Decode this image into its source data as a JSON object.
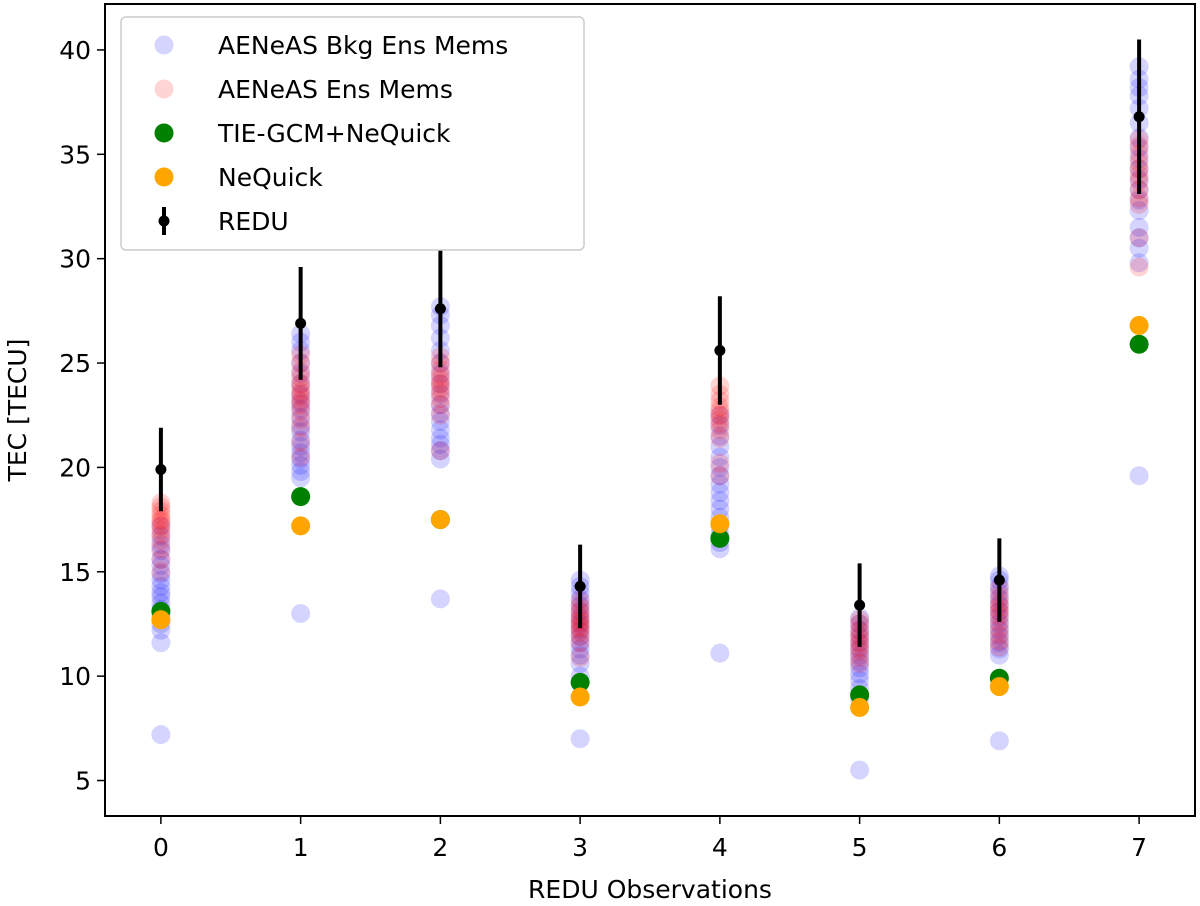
{
  "chart_data": {
    "type": "scatter",
    "title": "",
    "xlabel": "REDU Observations",
    "ylabel": "TEC [TECU]",
    "xlim": [
      -0.4,
      7.4
    ],
    "ylim": [
      3.3,
      42.2
    ],
    "xticks": [
      0,
      1,
      2,
      3,
      4,
      5,
      6,
      7
    ],
    "yticks": [
      5,
      10,
      15,
      20,
      25,
      30,
      35,
      40
    ],
    "legend_position": "top-left",
    "legend": [
      {
        "key": "bkg",
        "label": "AENeAS Bkg Ens Mems",
        "color": "#0000ff",
        "alpha": 0.17,
        "marker": "circle"
      },
      {
        "key": "ens",
        "label": "AENeAS Ens Mems",
        "color": "#ff0000",
        "alpha": 0.17,
        "marker": "circle"
      },
      {
        "key": "tie",
        "label": "TIE-GCM+NeQuick",
        "color": "#008000",
        "alpha": 1,
        "marker": "circle"
      },
      {
        "key": "neq",
        "label": "NeQuick",
        "color": "#ffa500",
        "alpha": 1,
        "marker": "circle"
      },
      {
        "key": "redu",
        "label": "REDU",
        "color": "#000000",
        "alpha": 1,
        "marker": "errorbar"
      }
    ],
    "series": [
      {
        "name": "AENeAS Bkg Ens Mems",
        "points": [
          [
            0,
            7.2
          ],
          [
            0,
            11.6
          ],
          [
            0,
            12.2
          ],
          [
            0,
            12.5
          ],
          [
            0,
            12.9
          ],
          [
            0,
            13.2
          ],
          [
            0,
            13.5
          ],
          [
            0,
            13.8
          ],
          [
            0,
            14.0
          ],
          [
            0,
            14.3
          ],
          [
            0,
            14.6
          ],
          [
            0,
            14.9
          ],
          [
            0,
            15.3
          ],
          [
            0,
            15.6
          ],
          [
            0,
            16.0
          ],
          [
            0,
            16.3
          ],
          [
            0,
            16.7
          ],
          [
            0,
            17.2
          ],
          [
            1,
            13.0
          ],
          [
            1,
            19.5
          ],
          [
            1,
            19.8
          ],
          [
            1,
            20.1
          ],
          [
            1,
            20.4
          ],
          [
            1,
            20.7
          ],
          [
            1,
            21.0
          ],
          [
            1,
            21.3
          ],
          [
            1,
            21.7
          ],
          [
            1,
            22.0
          ],
          [
            1,
            22.4
          ],
          [
            1,
            22.8
          ],
          [
            1,
            23.1
          ],
          [
            1,
            23.5
          ],
          [
            1,
            24.0
          ],
          [
            1,
            24.5
          ],
          [
            1,
            25.0
          ],
          [
            1,
            25.6
          ],
          [
            1,
            26.0
          ],
          [
            1,
            26.4
          ],
          [
            2,
            13.7
          ],
          [
            2,
            20.4
          ],
          [
            2,
            20.8
          ],
          [
            2,
            21.1
          ],
          [
            2,
            21.4
          ],
          [
            2,
            21.8
          ],
          [
            2,
            22.2
          ],
          [
            2,
            22.6
          ],
          [
            2,
            23.0
          ],
          [
            2,
            23.5
          ],
          [
            2,
            24.0
          ],
          [
            2,
            24.5
          ],
          [
            2,
            25.0
          ],
          [
            2,
            25.6
          ],
          [
            2,
            26.2
          ],
          [
            2,
            26.8
          ],
          [
            2,
            27.3
          ],
          [
            2,
            27.7
          ],
          [
            3,
            7.0
          ],
          [
            3,
            10.0
          ],
          [
            3,
            10.6
          ],
          [
            3,
            11.0
          ],
          [
            3,
            11.3
          ],
          [
            3,
            11.6
          ],
          [
            3,
            11.9
          ],
          [
            3,
            12.2
          ],
          [
            3,
            12.5
          ],
          [
            3,
            12.8
          ],
          [
            3,
            13.1
          ],
          [
            3,
            13.4
          ],
          [
            3,
            13.7
          ],
          [
            3,
            14.0
          ],
          [
            3,
            14.3
          ],
          [
            3,
            14.6
          ],
          [
            4,
            11.1
          ],
          [
            4,
            16.1
          ],
          [
            4,
            16.4
          ],
          [
            4,
            16.8
          ],
          [
            4,
            17.2
          ],
          [
            4,
            17.6
          ],
          [
            4,
            18.0
          ],
          [
            4,
            18.4
          ],
          [
            4,
            18.8
          ],
          [
            4,
            19.2
          ],
          [
            4,
            19.6
          ],
          [
            4,
            20.0
          ],
          [
            4,
            20.5
          ],
          [
            4,
            21.0
          ],
          [
            4,
            21.5
          ],
          [
            4,
            22.0
          ],
          [
            4,
            22.5
          ],
          [
            5,
            5.5
          ],
          [
            5,
            8.9
          ],
          [
            5,
            9.4
          ],
          [
            5,
            9.8
          ],
          [
            5,
            10.1
          ],
          [
            5,
            10.4
          ],
          [
            5,
            10.7
          ],
          [
            5,
            11.0
          ],
          [
            5,
            11.3
          ],
          [
            5,
            11.6
          ],
          [
            5,
            11.9
          ],
          [
            5,
            12.2
          ],
          [
            5,
            12.5
          ],
          [
            5,
            12.8
          ],
          [
            6,
            6.9
          ],
          [
            6,
            11.0
          ],
          [
            6,
            11.3
          ],
          [
            6,
            11.6
          ],
          [
            6,
            11.9
          ],
          [
            6,
            12.2
          ],
          [
            6,
            12.5
          ],
          [
            6,
            12.8
          ],
          [
            6,
            13.1
          ],
          [
            6,
            13.4
          ],
          [
            6,
            13.7
          ],
          [
            6,
            14.0
          ],
          [
            6,
            14.3
          ],
          [
            6,
            14.6
          ],
          [
            6,
            14.8
          ],
          [
            7,
            19.6
          ],
          [
            7,
            29.8
          ],
          [
            7,
            30.5
          ],
          [
            7,
            31.0
          ],
          [
            7,
            31.5
          ],
          [
            7,
            32.3
          ],
          [
            7,
            32.8
          ],
          [
            7,
            33.3
          ],
          [
            7,
            33.8
          ],
          [
            7,
            34.3
          ],
          [
            7,
            34.8
          ],
          [
            7,
            35.3
          ],
          [
            7,
            35.8
          ],
          [
            7,
            36.5
          ],
          [
            7,
            37.2
          ],
          [
            7,
            37.8
          ],
          [
            7,
            38.2
          ],
          [
            7,
            38.6
          ],
          [
            7,
            39.2
          ]
        ]
      },
      {
        "name": "AENeAS Ens Mems",
        "points": [
          [
            0,
            15.0
          ],
          [
            0,
            15.6
          ],
          [
            0,
            16.1
          ],
          [
            0,
            16.5
          ],
          [
            0,
            16.8
          ],
          [
            0,
            17.0
          ],
          [
            0,
            17.2
          ],
          [
            0,
            17.4
          ],
          [
            0,
            17.5
          ],
          [
            0,
            17.7
          ],
          [
            0,
            17.9
          ],
          [
            0,
            18.1
          ],
          [
            0,
            18.3
          ],
          [
            1,
            20.5
          ],
          [
            1,
            21.2
          ],
          [
            1,
            21.9
          ],
          [
            1,
            22.3
          ],
          [
            1,
            22.7
          ],
          [
            1,
            23.0
          ],
          [
            1,
            23.2
          ],
          [
            1,
            23.4
          ],
          [
            1,
            23.6
          ],
          [
            1,
            23.8
          ],
          [
            1,
            24.0
          ],
          [
            1,
            24.3
          ],
          [
            1,
            24.6
          ],
          [
            1,
            25.0
          ],
          [
            1,
            25.4
          ],
          [
            2,
            20.8
          ],
          [
            2,
            22.5
          ],
          [
            2,
            23.0
          ],
          [
            2,
            23.3
          ],
          [
            2,
            23.6
          ],
          [
            2,
            23.8
          ],
          [
            2,
            24.0
          ],
          [
            2,
            24.2
          ],
          [
            2,
            24.4
          ],
          [
            2,
            24.7
          ],
          [
            2,
            25.0
          ],
          [
            2,
            25.3
          ],
          [
            3,
            10.9
          ],
          [
            3,
            11.6
          ],
          [
            3,
            11.9
          ],
          [
            3,
            12.1
          ],
          [
            3,
            12.3
          ],
          [
            3,
            12.4
          ],
          [
            3,
            12.6
          ],
          [
            3,
            12.7
          ],
          [
            3,
            12.9
          ],
          [
            3,
            13.1
          ],
          [
            3,
            13.3
          ],
          [
            3,
            13.6
          ],
          [
            4,
            19.6
          ],
          [
            4,
            20.2
          ],
          [
            4,
            21.4
          ],
          [
            4,
            21.8
          ],
          [
            4,
            22.1
          ],
          [
            4,
            22.3
          ],
          [
            4,
            22.5
          ],
          [
            4,
            22.7
          ],
          [
            4,
            22.9
          ],
          [
            4,
            23.2
          ],
          [
            4,
            23.5
          ],
          [
            4,
            23.9
          ],
          [
            5,
            10.6
          ],
          [
            5,
            10.9
          ],
          [
            5,
            11.2
          ],
          [
            5,
            11.4
          ],
          [
            5,
            11.6
          ],
          [
            5,
            11.8
          ],
          [
            5,
            12.0
          ],
          [
            5,
            12.2
          ],
          [
            5,
            12.5
          ],
          [
            5,
            12.7
          ],
          [
            6,
            11.4
          ],
          [
            6,
            11.7
          ],
          [
            6,
            12.0
          ],
          [
            6,
            12.3
          ],
          [
            6,
            12.6
          ],
          [
            6,
            12.9
          ],
          [
            6,
            13.1
          ],
          [
            6,
            13.3
          ],
          [
            6,
            13.5
          ],
          [
            6,
            13.8
          ],
          [
            6,
            14.2
          ],
          [
            7,
            29.6
          ],
          [
            7,
            31.0
          ],
          [
            7,
            32.6
          ],
          [
            7,
            32.9
          ],
          [
            7,
            33.3
          ],
          [
            7,
            33.7
          ],
          [
            7,
            34.0
          ],
          [
            7,
            34.3
          ],
          [
            7,
            34.6
          ],
          [
            7,
            35.0
          ],
          [
            7,
            35.4
          ],
          [
            7,
            35.7
          ]
        ]
      },
      {
        "name": "TIE-GCM+NeQuick",
        "points": [
          [
            0,
            13.1
          ],
          [
            1,
            18.6
          ],
          [
            2,
            17.5
          ],
          [
            3,
            9.7
          ],
          [
            4,
            16.6
          ],
          [
            5,
            9.1
          ],
          [
            6,
            9.9
          ],
          [
            7,
            25.9
          ]
        ]
      },
      {
        "name": "NeQuick",
        "points": [
          [
            0,
            12.7
          ],
          [
            1,
            17.2
          ],
          [
            2,
            17.5
          ],
          [
            3,
            9.0
          ],
          [
            4,
            17.3
          ],
          [
            5,
            8.5
          ],
          [
            6,
            9.5
          ],
          [
            7,
            26.8
          ]
        ]
      }
    ],
    "redu": {
      "name": "REDU",
      "x": [
        0,
        1,
        2,
        3,
        4,
        5,
        6,
        7
      ],
      "y": [
        19.9,
        26.9,
        27.6,
        14.3,
        25.6,
        13.4,
        14.6,
        36.8
      ],
      "err": [
        2.0,
        2.7,
        2.8,
        2.0,
        2.6,
        2.0,
        2.0,
        3.7
      ]
    }
  }
}
